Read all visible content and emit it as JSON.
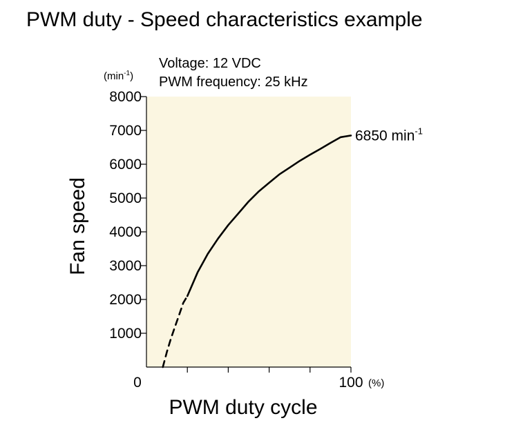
{
  "chart_data": {
    "type": "line",
    "title": "PWM duty - Speed characteristics example",
    "conditions": [
      "Voltage: 12 VDC",
      "PWM frequency: 25 kHz"
    ],
    "xlabel": "PWM duty cycle",
    "ylabel": "Fan speed",
    "y_unit": "(min",
    "y_unit_sup": "-1",
    "y_unit_close": ")",
    "x_unit": "(%)",
    "xlim": [
      0,
      100
    ],
    "ylim": [
      0,
      8000
    ],
    "y_ticks": [
      0,
      1000,
      2000,
      3000,
      4000,
      5000,
      6000,
      7000,
      8000
    ],
    "y_tick_labels": [
      "1000",
      "2000",
      "3000",
      "4000",
      "5000",
      "6000",
      "7000",
      "8000"
    ],
    "x_ticks": [
      0,
      20,
      40,
      60,
      80,
      100
    ],
    "x_tick_labels": [
      {
        "value": 0,
        "text": "0"
      },
      {
        "value": 100,
        "text": "100"
      }
    ],
    "plot_background": "#fbf6e1",
    "line_color": "#000000",
    "series": [
      {
        "style": "dashed",
        "x": [
          8,
          10,
          12,
          14,
          16,
          18,
          20
        ],
        "y": [
          0,
          450,
          850,
          1200,
          1550,
          1900,
          2100
        ]
      },
      {
        "style": "solid",
        "x": [
          20,
          25,
          30,
          35,
          40,
          45,
          50,
          55,
          60,
          65,
          70,
          75,
          80,
          85,
          90,
          95,
          100
        ],
        "y": [
          2100,
          2800,
          3350,
          3800,
          4200,
          4550,
          4900,
          5200,
          5450,
          5700,
          5900,
          6100,
          6280,
          6450,
          6630,
          6800,
          6850
        ]
      }
    ],
    "annotation": {
      "text": "6850 min",
      "sup": "-1",
      "x": 100,
      "y": 6850
    }
  }
}
